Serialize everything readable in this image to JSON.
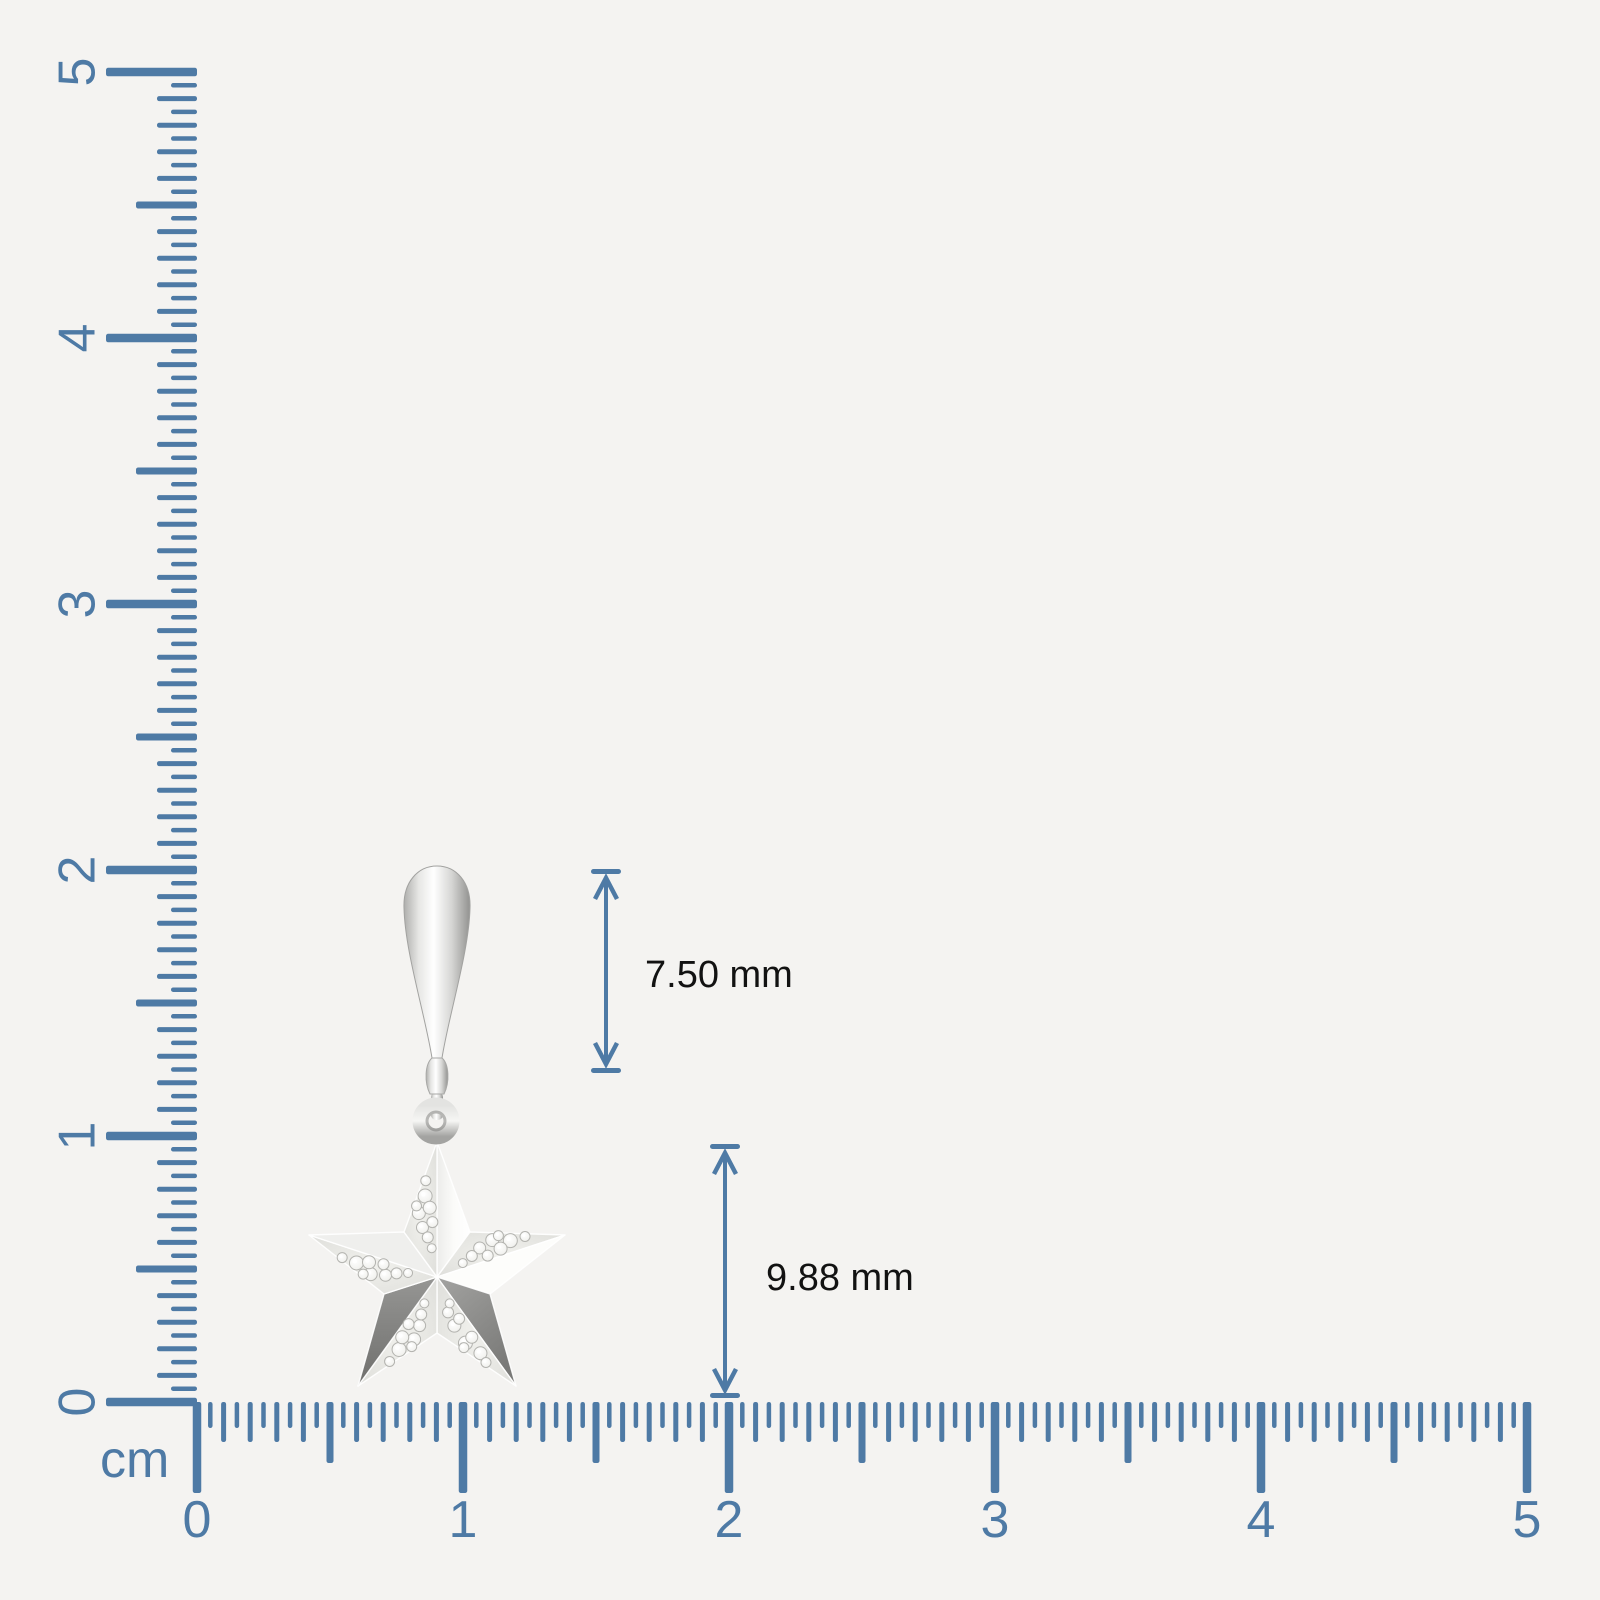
{
  "background_color": "#f4f3f1",
  "ruler": {
    "unit_label": "cm",
    "color": "#4e7aa5",
    "min": 0,
    "max": 5,
    "subticks_per_cm": 20,
    "vertical_labels": [
      "5",
      "4",
      "3",
      "2",
      "1",
      "0"
    ],
    "horizontal_labels": [
      "0",
      "1",
      "2",
      "3",
      "4",
      "5"
    ]
  },
  "dimensions": {
    "text_color": "#121212",
    "arrow_color": "#4e7aa5",
    "bail_height": {
      "label": "7.50 mm"
    },
    "star_height": {
      "label": "9.88 mm"
    }
  },
  "pendant": {
    "metal_color": "#efefed",
    "dark_facet_color": "#868684",
    "diamond_color": "#ffffff"
  }
}
